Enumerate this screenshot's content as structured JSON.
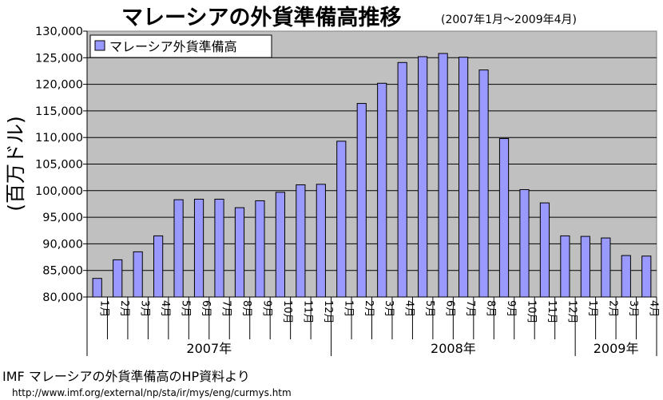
{
  "chart_data": {
    "type": "bar",
    "title": "マレーシアの外貨準備高推移",
    "subtitle": "(2007年1月〜2009年4月)",
    "ylabel": "(百万ドル)",
    "ylim": [
      80000,
      130000
    ],
    "ytick_step": 5000,
    "yticks": [
      "80,000",
      "85,000",
      "90,000",
      "95,000",
      "100,000",
      "105,000",
      "110,000",
      "115,000",
      "120,000",
      "125,000",
      "130,000"
    ],
    "grid": true,
    "legend": "top-left",
    "categories": [
      "1月",
      "2月",
      "3月",
      "4月",
      "5月",
      "6月",
      "7月",
      "8月",
      "9月",
      "10月",
      "11月",
      "12月",
      "1月",
      "2月",
      "3月",
      "4月",
      "5月",
      "6月",
      "7月",
      "8月",
      "9月",
      "10月",
      "11月",
      "12月",
      "1月",
      "2月",
      "3月",
      "4月"
    ],
    "year_groups": [
      {
        "label": "2007年",
        "count": 12
      },
      {
        "label": "2008年",
        "count": 12
      },
      {
        "label": "2009年",
        "count": 4
      }
    ],
    "series": [
      {
        "name": "マレーシア外貨準備高",
        "values": [
          83500,
          87000,
          88500,
          91500,
          98300,
          98400,
          98400,
          96800,
          98100,
          99700,
          101100,
          101200,
          109300,
          116400,
          120200,
          124100,
          125200,
          125800,
          125100,
          122700,
          109800,
          100200,
          97700,
          91500,
          91400,
          91100,
          87800,
          87700
        ]
      }
    ],
    "colors": {
      "bar_fill": "#9999ff",
      "bar_stroke": "#000000",
      "plot_background": "#c0c0c0",
      "grid": "#000000"
    }
  },
  "source": {
    "line1": "IMF マレーシアの外貨準備高のHP資料より",
    "line2": "http://www.imf.org/external/np/sta/ir/mys/eng/curmys.htm"
  }
}
